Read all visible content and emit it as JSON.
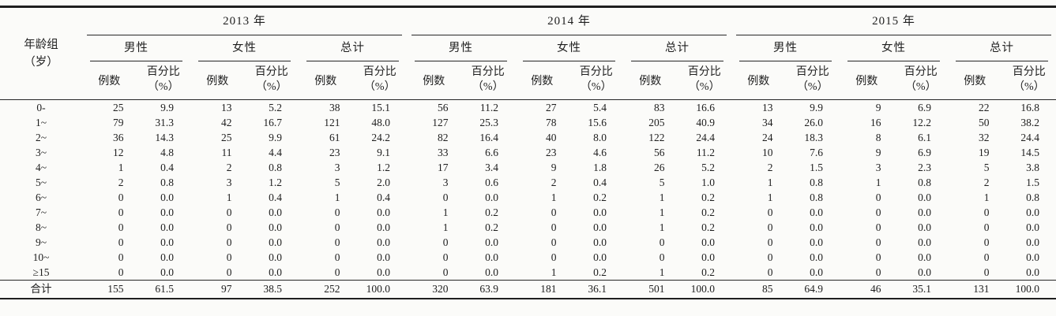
{
  "table": {
    "row_header": {
      "line1": "年龄组",
      "line2": "（岁）"
    },
    "year_groups": [
      {
        "label": "2013 年"
      },
      {
        "label": "2014 年"
      },
      {
        "label": "2015 年"
      }
    ],
    "subgroups": [
      "男性",
      "女性",
      "总计"
    ],
    "metric_headers": {
      "cases": "例数",
      "pct_line1": "百分比",
      "pct_line2": "（%）"
    },
    "rows": [
      {
        "label": "0-",
        "values": [
          "25",
          "9.9",
          "13",
          "5.2",
          "38",
          "15.1",
          "56",
          "11.2",
          "27",
          "5.4",
          "83",
          "16.6",
          "13",
          "9.9",
          "9",
          "6.9",
          "22",
          "16.8"
        ]
      },
      {
        "label": "1~",
        "values": [
          "79",
          "31.3",
          "42",
          "16.7",
          "121",
          "48.0",
          "127",
          "25.3",
          "78",
          "15.6",
          "205",
          "40.9",
          "34",
          "26.0",
          "16",
          "12.2",
          "50",
          "38.2"
        ]
      },
      {
        "label": "2~",
        "values": [
          "36",
          "14.3",
          "25",
          "9.9",
          "61",
          "24.2",
          "82",
          "16.4",
          "40",
          "8.0",
          "122",
          "24.4",
          "24",
          "18.3",
          "8",
          "6.1",
          "32",
          "24.4"
        ]
      },
      {
        "label": "3~",
        "values": [
          "12",
          "4.8",
          "11",
          "4.4",
          "23",
          "9.1",
          "33",
          "6.6",
          "23",
          "4.6",
          "56",
          "11.2",
          "10",
          "7.6",
          "9",
          "6.9",
          "19",
          "14.5"
        ]
      },
      {
        "label": "4~",
        "values": [
          "1",
          "0.4",
          "2",
          "0.8",
          "3",
          "1.2",
          "17",
          "3.4",
          "9",
          "1.8",
          "26",
          "5.2",
          "2",
          "1.5",
          "3",
          "2.3",
          "5",
          "3.8"
        ]
      },
      {
        "label": "5~",
        "values": [
          "2",
          "0.8",
          "3",
          "1.2",
          "5",
          "2.0",
          "3",
          "0.6",
          "2",
          "0.4",
          "5",
          "1.0",
          "1",
          "0.8",
          "1",
          "0.8",
          "2",
          "1.5"
        ]
      },
      {
        "label": "6~",
        "values": [
          "0",
          "0.0",
          "1",
          "0.4",
          "1",
          "0.4",
          "0",
          "0.0",
          "1",
          "0.2",
          "1",
          "0.2",
          "1",
          "0.8",
          "0",
          "0.0",
          "1",
          "0.8"
        ]
      },
      {
        "label": "7~",
        "values": [
          "0",
          "0.0",
          "0",
          "0.0",
          "0",
          "0.0",
          "1",
          "0.2",
          "0",
          "0.0",
          "1",
          "0.2",
          "0",
          "0.0",
          "0",
          "0.0",
          "0",
          "0.0"
        ]
      },
      {
        "label": "8~",
        "values": [
          "0",
          "0.0",
          "0",
          "0.0",
          "0",
          "0.0",
          "1",
          "0.2",
          "0",
          "0.0",
          "1",
          "0.2",
          "0",
          "0.0",
          "0",
          "0.0",
          "0",
          "0.0"
        ]
      },
      {
        "label": "9~",
        "values": [
          "0",
          "0.0",
          "0",
          "0.0",
          "0",
          "0.0",
          "0",
          "0.0",
          "0",
          "0.0",
          "0",
          "0.0",
          "0",
          "0.0",
          "0",
          "0.0",
          "0",
          "0.0"
        ]
      },
      {
        "label": "10~",
        "values": [
          "0",
          "0.0",
          "0",
          "0.0",
          "0",
          "0.0",
          "0",
          "0.0",
          "0",
          "0.0",
          "0",
          "0.0",
          "0",
          "0.0",
          "0",
          "0.0",
          "0",
          "0.0"
        ]
      },
      {
        "label": "≥15",
        "values": [
          "0",
          "0.0",
          "0",
          "0.0",
          "0",
          "0.0",
          "0",
          "0.0",
          "1",
          "0.2",
          "1",
          "0.2",
          "0",
          "0.0",
          "0",
          "0.0",
          "0",
          "0.0"
        ]
      }
    ],
    "total_row": {
      "label": "合计",
      "values": [
        "155",
        "61.5",
        "97",
        "38.5",
        "252",
        "100.0",
        "320",
        "63.9",
        "181",
        "36.1",
        "501",
        "100.0",
        "85",
        "64.9",
        "46",
        "35.1",
        "131",
        "100.0"
      ]
    }
  }
}
